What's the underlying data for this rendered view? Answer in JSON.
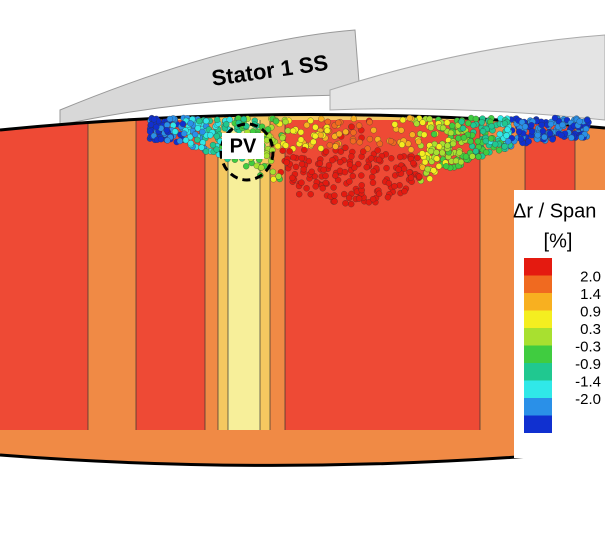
{
  "blade_label": "Stator 1 SS",
  "vortex_label": "PV",
  "legend": {
    "title": "Δr / Span",
    "unit": "[%]",
    "labels": [
      "2.0",
      "1.4",
      "0.9",
      "0.3",
      "-0.3",
      "-0.9",
      "-1.4",
      "-2.0"
    ]
  }
}
